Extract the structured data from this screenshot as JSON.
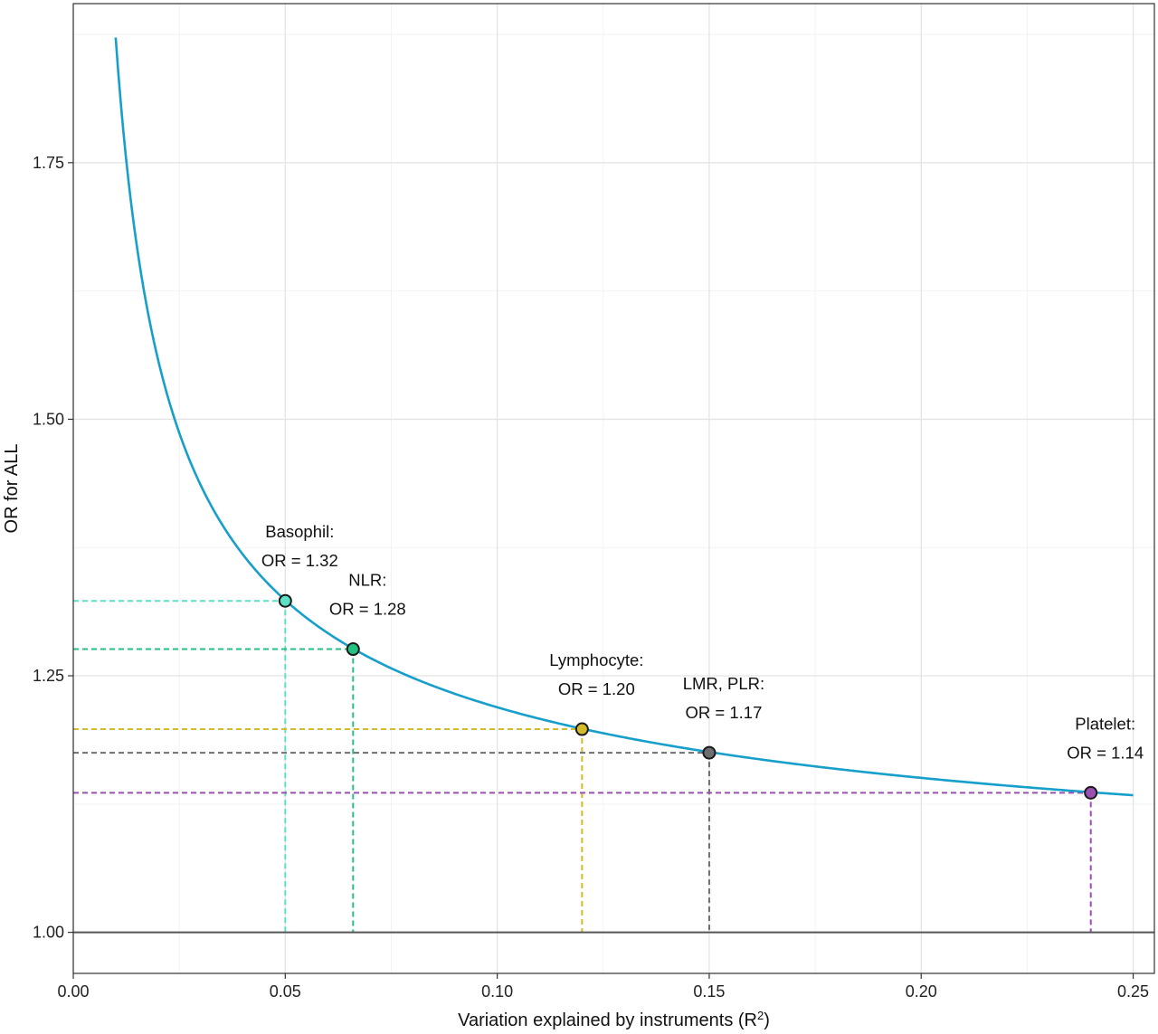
{
  "chart_data": {
    "type": "line",
    "xlabel": "Variation explained by instruments (R",
    "xlabel_sup": "2",
    "xlabel_close": ")",
    "ylabel": "OR for ALL",
    "xlim": [
      0,
      0.255
    ],
    "ylim": [
      0.96,
      1.905
    ],
    "x_ticks": [
      {
        "value": 0.0,
        "label": "0.00"
      },
      {
        "value": 0.05,
        "label": "0.05"
      },
      {
        "value": 0.1,
        "label": "0.10"
      },
      {
        "value": 0.15,
        "label": "0.15"
      },
      {
        "value": 0.2,
        "label": "0.20"
      },
      {
        "value": 0.25,
        "label": "0.25"
      }
    ],
    "y_ticks": [
      {
        "value": 1.0,
        "label": "1.00"
      },
      {
        "value": 1.25,
        "label": "1.25"
      },
      {
        "value": 1.5,
        "label": "1.50"
      },
      {
        "value": 1.75,
        "label": "1.75"
      }
    ],
    "grid": true,
    "reference_line": {
      "y": 1.0,
      "color": "#555555"
    },
    "curve": {
      "color": "#179fcc",
      "x_range": [
        0.01,
        0.25
      ],
      "shape": "exp(k / sqrt(R2))",
      "k": 0.0627
    },
    "points": [
      {
        "x": 0.05,
        "y": 1.323,
        "color": "#5ce0c6",
        "label_line1": "Basophil:",
        "label_line2": "OR = 1.32"
      },
      {
        "x": 0.066,
        "y": 1.276,
        "color": "#22c283",
        "label_line1": "NLR:",
        "label_line2": "OR = 1.28"
      },
      {
        "x": 0.12,
        "y": 1.198,
        "color": "#d4bb2b",
        "label_line1": "Lymphocyte:",
        "label_line2": "OR = 1.20"
      },
      {
        "x": 0.15,
        "y": 1.175,
        "color": "#6e6e6e",
        "label_line1": "LMR, PLR:",
        "label_line2": "OR = 1.17"
      },
      {
        "x": 0.24,
        "y": 1.136,
        "color": "#9b4fb3",
        "label_line1": "Platelet:",
        "label_line2": "OR = 1.14"
      }
    ]
  }
}
